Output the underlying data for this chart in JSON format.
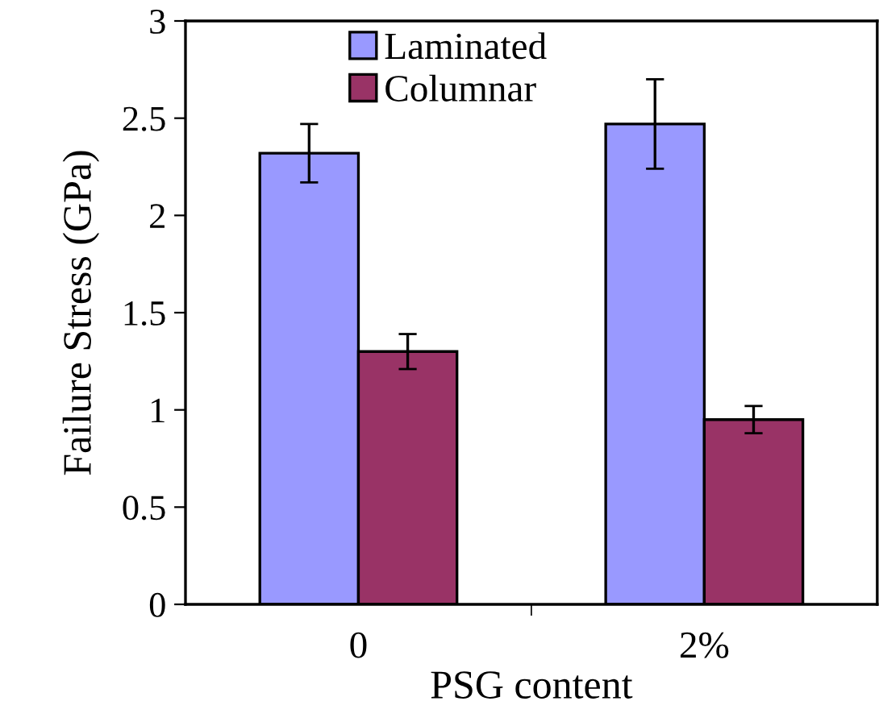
{
  "chart_data": {
    "type": "bar",
    "xlabel": "PSG content",
    "ylabel": "Failure Stress (GPa)",
    "categories": [
      "0",
      "2%"
    ],
    "series": [
      {
        "name": "Laminated",
        "color": "#9999ff",
        "values": [
          2.32,
          2.47
        ],
        "errors": [
          0.15,
          0.23
        ]
      },
      {
        "name": "Columnar",
        "color": "#993366",
        "values": [
          1.3,
          0.95
        ],
        "errors": [
          0.09,
          0.07
        ]
      }
    ],
    "ylim": [
      0,
      3
    ],
    "yticks": [
      0,
      0.5,
      1,
      1.5,
      2,
      2.5,
      3
    ],
    "grid": false,
    "legend": "top"
  }
}
